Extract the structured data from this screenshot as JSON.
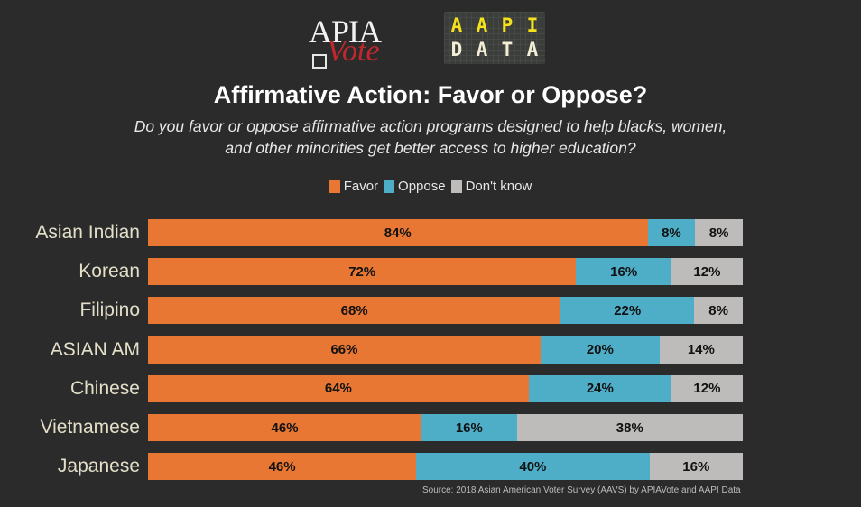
{
  "logos": {
    "apia_top": "APIA",
    "apia_bottom": "Vote",
    "aapi_row1": [
      "A",
      "A",
      "P",
      "I"
    ],
    "aapi_row2": [
      "D",
      "A",
      "T",
      "A"
    ]
  },
  "colors": {
    "favor": "#e87733",
    "oppose": "#4eaec7",
    "dont_know": "#bdbcba",
    "background": "#2b2b2b"
  },
  "chart_data": {
    "type": "bar",
    "orientation": "horizontal-stacked",
    "title": "Affirmative Action: Favor or Oppose?",
    "subtitle": "Do you favor or oppose affirmative action programs designed to help blacks, women, and other minorities get better access to higher education?",
    "legend": [
      "Favor",
      "Oppose",
      "Don't know"
    ],
    "legend_position": "top-center",
    "categories": [
      "Asian Indian",
      "Korean",
      "Filipino",
      "ASIAN AM",
      "Chinese",
      "Vietnamese",
      "Japanese"
    ],
    "series": [
      {
        "name": "Favor",
        "values": [
          84,
          72,
          68,
          66,
          64,
          46,
          46
        ]
      },
      {
        "name": "Oppose",
        "values": [
          8,
          16,
          22,
          20,
          24,
          16,
          40
        ]
      },
      {
        "name": "Don't know",
        "values": [
          8,
          12,
          8,
          14,
          12,
          38,
          16
        ]
      }
    ],
    "value_suffix": "%",
    "xlabel": "",
    "ylabel": "",
    "grid": false,
    "source": "Source: 2018 Asian American Voter Survey (AAVS) by APIAVote and AAPI Data"
  }
}
